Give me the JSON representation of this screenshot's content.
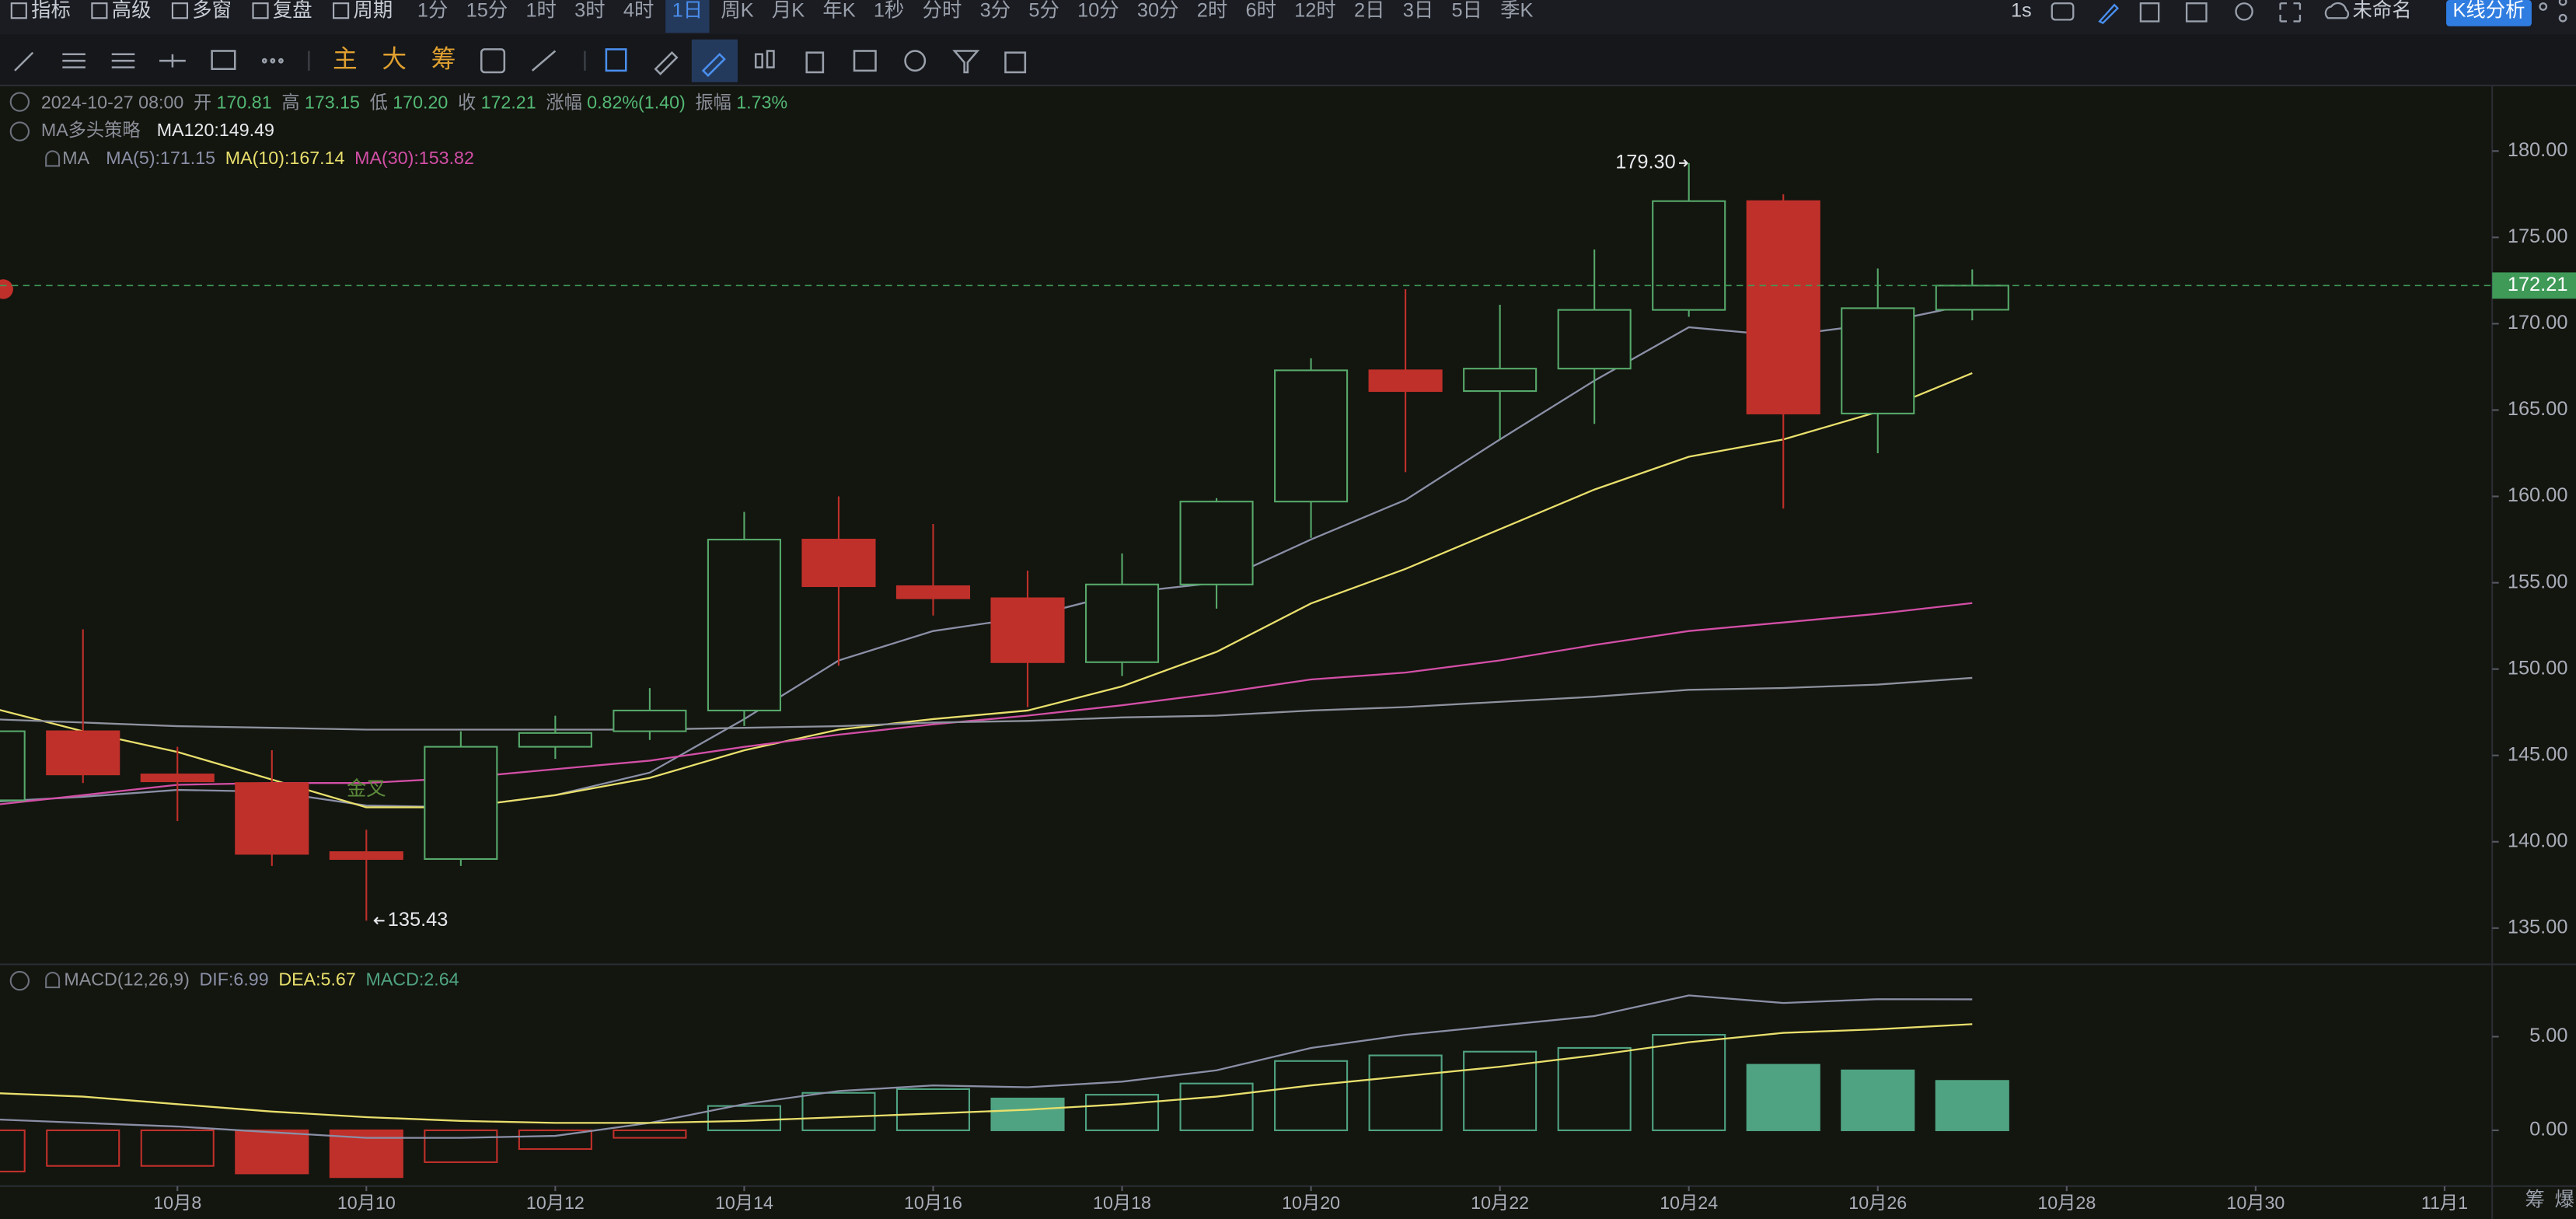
{
  "toolbar": {
    "menu": [
      "指标",
      "高级",
      "多窗",
      "复盘",
      "周期"
    ],
    "periods": [
      "1分",
      "15分",
      "1时",
      "3时",
      "4时",
      "1日",
      "周K",
      "月K",
      "年K",
      "1秒",
      "分时",
      "3分",
      "5分",
      "10分",
      "30分",
      "2时",
      "6时",
      "12时",
      "2日",
      "3日",
      "5日",
      "季K"
    ],
    "selected_period": 5,
    "right": [
      "1s",
      "未命名",
      "K线分析"
    ]
  },
  "drawing_toolbar": [
    "主",
    "大",
    "筹"
  ],
  "info": {
    "datetime": "2024-10-27 08:00",
    "fields": [
      {
        "label": "开",
        "value": "170.81"
      },
      {
        "label": "高",
        "value": "173.15"
      },
      {
        "label": "低",
        "value": "170.20"
      },
      {
        "label": "收",
        "value": "172.21"
      },
      {
        "label": "涨幅",
        "value": "0.82%(1.40)"
      },
      {
        "label": "振幅",
        "value": "1.73%"
      }
    ]
  },
  "strategy": "MA多头策略",
  "ma_title": "MA",
  "corner_items": [
    "筹",
    "爆"
  ],
  "chart_data": [
    {
      "type": "candlestick",
      "categories": [
        null,
        null,
        "10月8",
        null,
        "10月10",
        null,
        "10月12",
        null,
        "10月14",
        null,
        "10月16",
        null,
        "10月18",
        null,
        "10月20",
        null,
        "10月22",
        null,
        "10月24",
        null,
        "10月26",
        null,
        "10月28",
        null,
        "10月30",
        null,
        "11月1"
      ],
      "open": [
        142.4,
        146.4,
        143.9,
        143.4,
        139.4,
        139.0,
        145.5,
        146.4,
        147.6,
        157.5,
        154.8,
        154.1,
        150.4,
        154.9,
        159.7,
        167.3,
        166.1,
        167.4,
        170.8,
        177.1,
        164.8,
        170.81,
        null,
        null,
        null,
        null,
        null
      ],
      "high": [
        146.5,
        152.3,
        145.5,
        145.3,
        140.7,
        146.4,
        147.3,
        148.9,
        159.1,
        160.0,
        158.4,
        155.7,
        156.7,
        159.9,
        168.0,
        172.0,
        171.1,
        174.3,
        179.3,
        177.5,
        173.2,
        173.15,
        null,
        null,
        null,
        null,
        null
      ],
      "low": [
        142.0,
        143.4,
        141.2,
        138.6,
        135.43,
        138.6,
        144.8,
        145.9,
        146.7,
        150.2,
        153.1,
        147.8,
        149.6,
        153.5,
        157.6,
        161.4,
        163.3,
        164.2,
        170.4,
        159.3,
        162.5,
        170.2,
        null,
        null,
        null,
        null,
        null
      ],
      "close": [
        146.4,
        143.9,
        143.5,
        139.3,
        139.0,
        145.5,
        146.3,
        147.6,
        157.5,
        154.8,
        154.1,
        150.4,
        154.9,
        159.7,
        167.3,
        166.1,
        167.4,
        170.8,
        177.1,
        164.8,
        170.9,
        172.21,
        null,
        null,
        null,
        null,
        null
      ],
      "up_color": "#56a86a",
      "down_color": "#c0302a",
      "overlays": [
        {
          "name": "MA(5):171.15",
          "color": "#8a8fa6",
          "values": [
            142.3,
            142.6,
            143.0,
            142.9,
            142.1,
            142.0,
            142.7,
            144.0,
            147.1,
            150.5,
            152.2,
            153.0,
            154.4,
            155.0,
            157.5,
            159.8,
            163.3,
            166.7,
            169.8,
            169.3,
            170.0,
            171.15,
            null,
            null,
            null,
            null,
            null
          ]
        },
        {
          "name": "MA(10):167.14",
          "color": "#e8df6c",
          "values": [
            147.8,
            146.4,
            145.2,
            143.6,
            142.0,
            142.0,
            142.7,
            143.7,
            145.3,
            146.5,
            147.1,
            147.6,
            149.0,
            151.0,
            153.8,
            155.8,
            158.1,
            160.4,
            162.3,
            163.3,
            164.9,
            167.14,
            null,
            null,
            null,
            null,
            null
          ]
        },
        {
          "name": "MA(30):153.82",
          "color": "#d24fa6",
          "values": [
            142.1,
            142.7,
            143.3,
            143.4,
            143.4,
            143.7,
            144.2,
            144.7,
            145.5,
            146.2,
            146.8,
            147.3,
            147.9,
            148.6,
            149.4,
            149.8,
            150.5,
            151.4,
            152.2,
            152.7,
            153.2,
            153.82,
            null,
            null,
            null,
            null,
            null
          ]
        },
        {
          "name": "MA120:149.49",
          "color": "#8e929e",
          "values": [
            147.1,
            146.9,
            146.7,
            146.6,
            146.5,
            146.5,
            146.5,
            146.5,
            146.6,
            146.7,
            146.9,
            147.0,
            147.2,
            147.3,
            147.6,
            147.8,
            148.1,
            148.4,
            148.8,
            148.9,
            149.1,
            149.49,
            null,
            null,
            null,
            null,
            null
          ]
        }
      ],
      "last_price": 172.21,
      "last_price_color": "#3f9a58",
      "high_label": "179.30",
      "low_label": "135.43",
      "cross_label": "金叉",
      "ylim": [
        132.9,
        183.8
      ],
      "yticks": [
        {
          "value": 135,
          "label": "135.00"
        },
        {
          "value": 140,
          "label": "140.00"
        },
        {
          "value": 145,
          "label": "145.00"
        },
        {
          "value": 150,
          "label": "150.00"
        },
        {
          "value": 155,
          "label": "155.00"
        },
        {
          "value": 160,
          "label": "160.00"
        },
        {
          "value": 165,
          "label": "165.00"
        },
        {
          "value": 170,
          "label": "170.00"
        },
        {
          "value": 175,
          "label": "175.00"
        },
        {
          "value": 180,
          "label": "180.00"
        }
      ]
    },
    {
      "type": "macd",
      "title": "MACD(12,26,9)",
      "series": [
        {
          "name": "DIF:6.99",
          "color": "#8a8fa6",
          "values": [
            0.6,
            0.4,
            0.2,
            -0.1,
            -0.4,
            -0.4,
            -0.3,
            0.4,
            1.4,
            2.1,
            2.4,
            2.3,
            2.6,
            3.2,
            4.4,
            5.1,
            5.6,
            6.1,
            7.2,
            6.8,
            7.0,
            6.99,
            null,
            null,
            null,
            null,
            null
          ]
        },
        {
          "name": "DEA:5.67",
          "color": "#e8df6c",
          "values": [
            2.0,
            1.8,
            1.4,
            1.0,
            0.7,
            0.5,
            0.4,
            0.4,
            0.5,
            0.7,
            0.9,
            1.1,
            1.4,
            1.8,
            2.4,
            2.9,
            3.4,
            4.0,
            4.7,
            5.2,
            5.4,
            5.67,
            null,
            null,
            null,
            null,
            null
          ]
        }
      ],
      "histogram": {
        "name": "MACD:2.64",
        "up_color": "#4fa382",
        "down_color": "#c0302a",
        "values": [
          -2.2,
          -1.9,
          -1.9,
          -2.3,
          -2.5,
          -1.7,
          -1.0,
          -0.4,
          1.3,
          2.0,
          2.2,
          1.7,
          1.9,
          2.5,
          3.7,
          4.0,
          4.2,
          4.4,
          5.1,
          3.5,
          3.2,
          2.64,
          null,
          null,
          null,
          null,
          null
        ]
      },
      "ylim": [
        -2.98,
        8.86
      ],
      "yticks": [
        {
          "value": 0,
          "label": "0.00"
        },
        {
          "value": 5,
          "label": "5.00"
        }
      ]
    }
  ]
}
